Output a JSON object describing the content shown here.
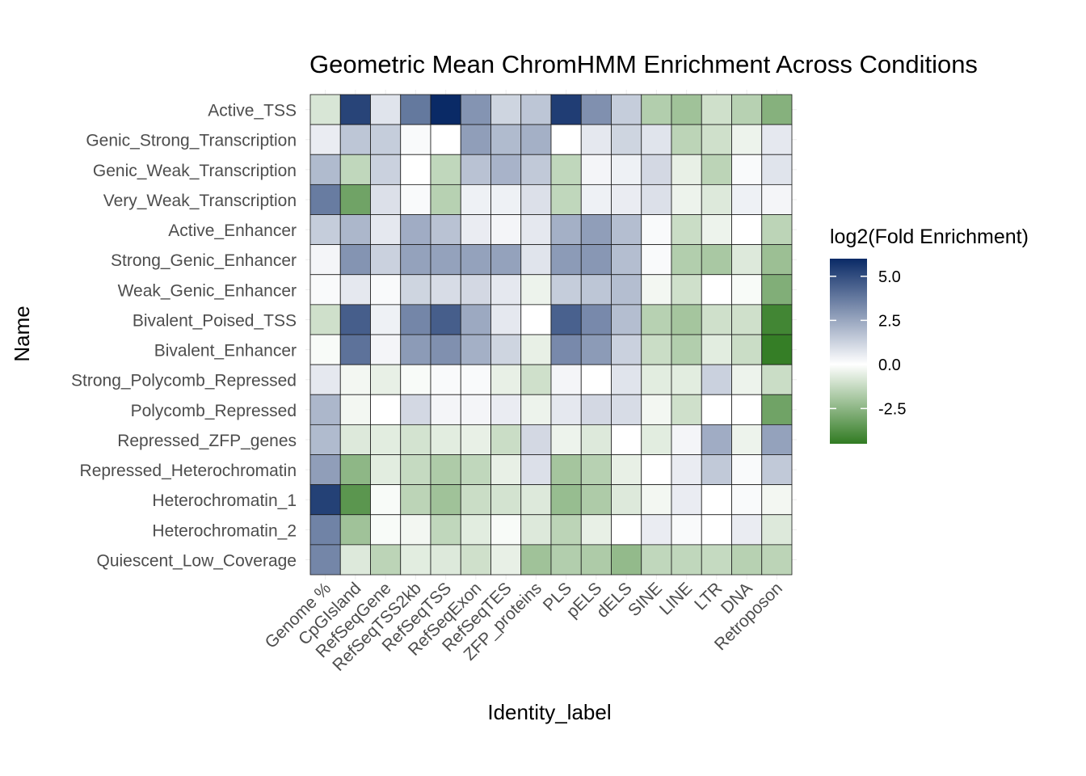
{
  "chart_data": {
    "type": "heatmap",
    "title": "Geometric Mean ChromHMM Enrichment Across Conditions",
    "xlabel": "Identity_label",
    "ylabel": "Name",
    "x_categories": [
      "Genome %",
      "CpGIsland",
      "RefSeqGene",
      "RefSeqTSS2kb",
      "RefSeqTSS",
      "RefSeqExon",
      "RefSeqTES",
      "ZFP_proteins",
      "PLS",
      "pELS",
      "dELS",
      "SINE",
      "LINE",
      "LTR",
      "DNA",
      "Retroposon"
    ],
    "y_categories": [
      "Active_TSS",
      "Genic_Strong_Transcription",
      "Genic_Weak_Transcription",
      "Very_Weak_Transcription",
      "Active_Enhancer",
      "Strong_Genic_Enhancer",
      "Weak_Genic_Enhancer",
      "Bivalent_Poised_TSS",
      "Bivalent_Enhancer",
      "Strong_Polycomb_Repressed",
      "Polycomb_Repressed",
      "Repressed_ZFP_genes",
      "Repressed_Heterochromatin",
      "Heterochromatin_1",
      "Heterochromatin_2",
      "Quiescent_Low_Coverage"
    ],
    "values": [
      [
        -0.7,
        5.2,
        0.6,
        3.6,
        6.0,
        2.8,
        1.0,
        1.4,
        5.4,
        2.9,
        1.2,
        -1.5,
        -1.9,
        -0.9,
        -1.4,
        -2.5
      ],
      [
        0.4,
        1.4,
        1.2,
        0.1,
        0.0,
        2.5,
        1.7,
        2.0,
        0.0,
        0.5,
        1.0,
        0.6,
        -1.3,
        -0.9,
        -0.3,
        0.5
      ],
      [
        1.7,
        -1.2,
        1.1,
        0.0,
        -1.2,
        1.5,
        1.9,
        1.3,
        -1.2,
        0.2,
        0.3,
        0.9,
        -0.4,
        -1.3,
        0.1,
        0.6
      ],
      [
        3.5,
        -3.0,
        0.7,
        0.1,
        -1.4,
        0.3,
        0.3,
        0.7,
        -1.2,
        0.3,
        0.4,
        0.7,
        -0.3,
        -0.6,
        0.3,
        0.2
      ],
      [
        1.2,
        1.8,
        0.5,
        2.1,
        1.5,
        0.4,
        0.2,
        0.5,
        2.0,
        2.5,
        1.6,
        0.1,
        -1.0,
        -0.3,
        0.0,
        -1.3
      ],
      [
        0.2,
        2.8,
        1.1,
        2.4,
        2.4,
        2.4,
        2.4,
        0.6,
        2.6,
        2.7,
        1.6,
        0.1,
        -1.5,
        -1.7,
        -0.6,
        -2.0
      ],
      [
        0.1,
        0.5,
        0.1,
        1.0,
        0.8,
        0.9,
        0.5,
        -0.3,
        1.2,
        1.4,
        1.6,
        -0.2,
        -0.9,
        0.0,
        -0.1,
        -2.6
      ],
      [
        -0.9,
        4.4,
        0.3,
        3.2,
        4.4,
        2.2,
        0.5,
        0.0,
        4.3,
        3.1,
        1.6,
        -1.4,
        -1.8,
        -0.9,
        -0.9,
        -4.1
      ],
      [
        -0.1,
        3.8,
        0.2,
        2.6,
        2.9,
        2.0,
        1.0,
        -0.4,
        3.1,
        2.6,
        1.1,
        -1.0,
        -1.5,
        -0.5,
        -1.0,
        -4.4
      ],
      [
        0.5,
        -0.2,
        -0.4,
        -0.1,
        0.1,
        0.1,
        -0.4,
        -0.9,
        0.2,
        0.0,
        0.6,
        -0.5,
        -0.5,
        1.1,
        -0.3,
        -1.0
      ],
      [
        1.8,
        -0.2,
        0.0,
        0.9,
        0.2,
        0.2,
        0.4,
        -0.3,
        0.5,
        0.9,
        0.8,
        -0.2,
        -0.9,
        0.0,
        0.0,
        -3.0
      ],
      [
        1.7,
        -0.6,
        -0.5,
        -0.8,
        -0.5,
        -0.4,
        -1.0,
        0.9,
        -0.3,
        -0.6,
        0.0,
        -0.5,
        0.2,
        2.1,
        -0.3,
        2.4
      ],
      [
        2.5,
        -2.3,
        -0.5,
        -1.1,
        -1.6,
        -1.2,
        -0.4,
        0.7,
        -1.8,
        -1.4,
        -0.4,
        0.0,
        0.4,
        1.3,
        0.1,
        1.3
      ],
      [
        5.3,
        -3.5,
        -0.1,
        -1.3,
        -1.9,
        -1.0,
        -0.8,
        -0.6,
        -2.1,
        -1.6,
        -0.6,
        -0.2,
        0.4,
        0.0,
        0.1,
        -0.2
      ],
      [
        3.3,
        -1.9,
        -0.1,
        -0.2,
        -1.2,
        -0.5,
        -0.1,
        -0.6,
        -1.3,
        -0.4,
        0.0,
        0.4,
        0.1,
        0.0,
        0.4,
        -0.6
      ],
      [
        3.2,
        -0.6,
        -1.3,
        -0.5,
        -0.6,
        -0.9,
        -0.4,
        -1.9,
        -1.5,
        -1.6,
        -2.2,
        -1.2,
        -1.2,
        -1.1,
        -1.4,
        -1.3
      ]
    ],
    "colorscale": {
      "low": "#317b22",
      "mid": "#ffffff",
      "high": "#0a2a66",
      "range": [
        -4.5,
        6.0
      ]
    },
    "legend": {
      "title": "log2(Fold Enrichment)",
      "ticks": [
        "5.0",
        "2.5",
        "0.0",
        "-2.5"
      ],
      "tick_values": [
        5.0,
        2.5,
        0.0,
        -2.5
      ],
      "position": "right"
    }
  }
}
